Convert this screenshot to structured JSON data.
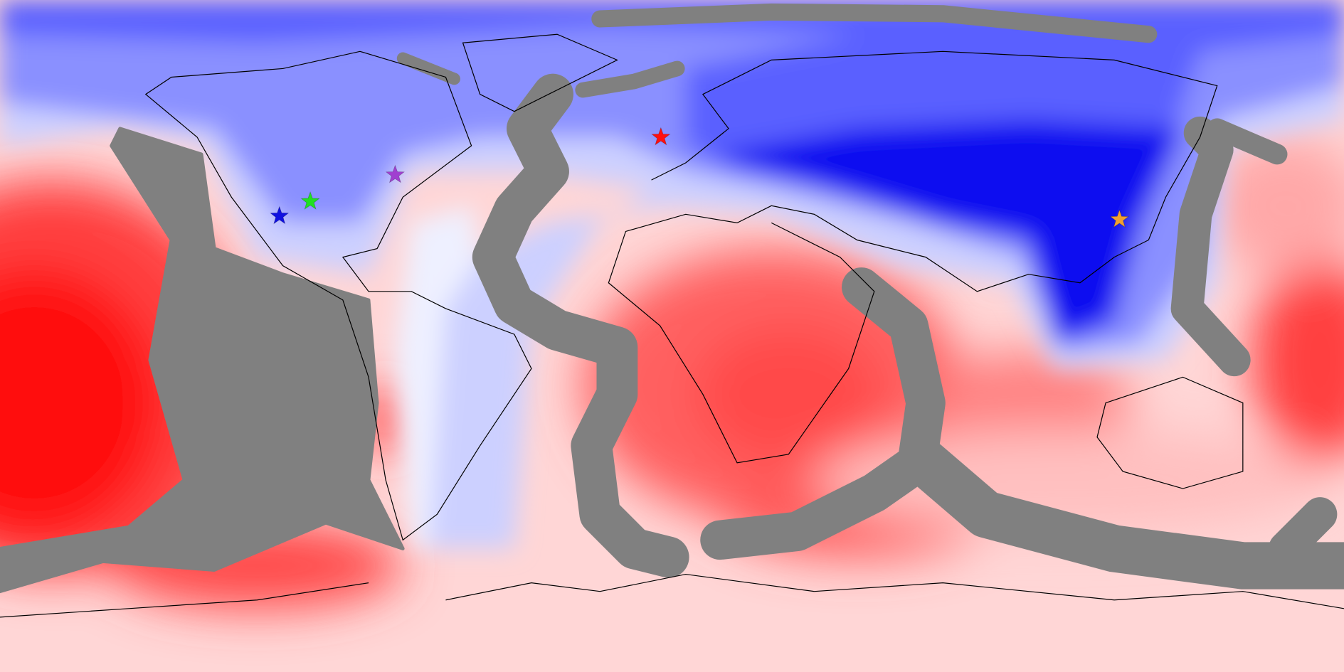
{
  "markers": [
    {
      "color": "#1010e0"
    },
    {
      "color": "#20e020"
    },
    {
      "color": "#a040d0"
    },
    {
      "color": "#ff1010"
    },
    {
      "color": "#f0a030"
    }
  ]
}
